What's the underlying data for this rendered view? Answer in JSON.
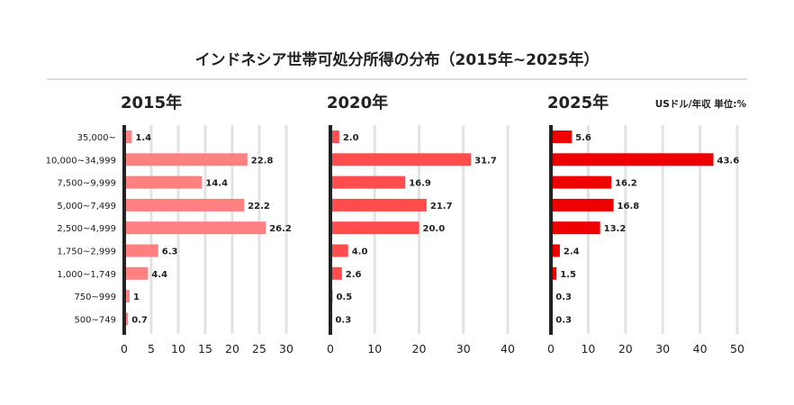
{
  "title": "インドネシア世帯可処分所得の分布（2015年~2025年）",
  "unit_note": "USドル/年収 単位:%",
  "colors": {
    "grid": "#e3e3e3",
    "axis": "#222222",
    "text": "#222222",
    "divider": "#dddddd",
    "bars_2015": "#ff8080",
    "bars_2020": "#ff4d4d",
    "bars_2025": "#ee0000"
  },
  "chart_data": {
    "type": "bar",
    "orientation": "horizontal",
    "title": "インドネシア世帯可処分所得の分布（2015年~2025年）",
    "categories": [
      "35,000~",
      "10,000~34,999",
      "7,500~9,999",
      "5,000~7,499",
      "2,500~4,999",
      "1,750~2,999",
      "1,000~1,749",
      "750~999",
      "500~749"
    ],
    "panels": [
      {
        "name": "2015年",
        "values": [
          1.4,
          22.8,
          14.4,
          22.2,
          26.2,
          6.3,
          4.4,
          1,
          0.7
        ],
        "labels": [
          "1.4",
          "22.8",
          "14.4",
          "22.2",
          "26.2",
          "6.3",
          "4.4",
          "1",
          "0.7"
        ],
        "xlim": [
          0,
          30
        ],
        "ticks": [
          "0",
          "5",
          "10",
          "15",
          "20",
          "25",
          "30"
        ]
      },
      {
        "name": "2020年",
        "values": [
          2.0,
          31.7,
          16.9,
          21.7,
          20.0,
          4.0,
          2.6,
          0.5,
          0.3
        ],
        "labels": [
          "2.0",
          "31.7",
          "16.9",
          "21.7",
          "20.0",
          "4.0",
          "2.6",
          "0.5",
          "0.3"
        ],
        "xlim": [
          0,
          40
        ],
        "ticks": [
          "0",
          "10",
          "20",
          "30",
          "40"
        ]
      },
      {
        "name": "2025年",
        "values": [
          5.6,
          43.6,
          16.2,
          16.8,
          13.2,
          2.4,
          1.5,
          0.3,
          0.3
        ],
        "labels": [
          "5.6",
          "43.6",
          "16.2",
          "16.8",
          "13.2",
          "2.4",
          "1.5",
          "0.3",
          "0.3"
        ],
        "xlim": [
          0,
          50
        ],
        "ticks": [
          "0",
          "10",
          "20",
          "30",
          "40",
          "50"
        ]
      }
    ]
  }
}
